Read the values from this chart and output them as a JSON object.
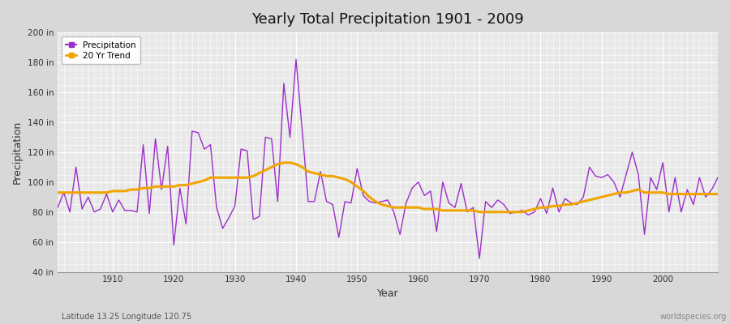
{
  "title": "Yearly Total Precipitation 1901 - 2009",
  "xlabel": "Year",
  "ylabel": "Precipitation",
  "subtitle": "Latitude 13.25 Longitude 120.75",
  "watermark": "worldspecies.org",
  "precip_color": "#9b2fc9",
  "trend_color": "#f0a500",
  "bg_color": "#d8d8d8",
  "plot_bg_color": "#e8e8e8",
  "ylim": [
    40,
    200
  ],
  "yticks": [
    40,
    60,
    80,
    100,
    120,
    140,
    160,
    180,
    200
  ],
  "ytick_labels": [
    "40 in",
    "60 in",
    "80 in",
    "100 in",
    "120 in",
    "140 in",
    "160 in",
    "180 in",
    "200 in"
  ],
  "years": [
    1901,
    1902,
    1903,
    1904,
    1905,
    1906,
    1907,
    1908,
    1909,
    1910,
    1911,
    1912,
    1913,
    1914,
    1915,
    1916,
    1917,
    1918,
    1919,
    1920,
    1921,
    1922,
    1923,
    1924,
    1925,
    1926,
    1927,
    1928,
    1929,
    1930,
    1931,
    1932,
    1933,
    1934,
    1935,
    1936,
    1937,
    1938,
    1939,
    1940,
    1941,
    1942,
    1943,
    1944,
    1945,
    1946,
    1947,
    1948,
    1949,
    1950,
    1951,
    1952,
    1953,
    1954,
    1955,
    1956,
    1957,
    1958,
    1959,
    1960,
    1961,
    1962,
    1963,
    1964,
    1965,
    1966,
    1967,
    1968,
    1969,
    1970,
    1971,
    1972,
    1973,
    1974,
    1975,
    1976,
    1977,
    1978,
    1979,
    1980,
    1981,
    1982,
    1983,
    1984,
    1985,
    1986,
    1987,
    1988,
    1989,
    1990,
    1991,
    1992,
    1993,
    1994,
    1995,
    1996,
    1997,
    1998,
    1999,
    2000,
    2001,
    2002,
    2003,
    2004,
    2005,
    2006,
    2007,
    2008,
    2009
  ],
  "precip": [
    83,
    93,
    80,
    110,
    82,
    90,
    80,
    82,
    92,
    80,
    88,
    81,
    81,
    80,
    125,
    79,
    129,
    95,
    124,
    58,
    96,
    72,
    134,
    133,
    122,
    125,
    83,
    69,
    76,
    84,
    122,
    121,
    75,
    77,
    130,
    129,
    87,
    166,
    130,
    182,
    135,
    87,
    87,
    107,
    87,
    85,
    63,
    87,
    86,
    109,
    91,
    87,
    86,
    87,
    88,
    80,
    65,
    86,
    96,
    100,
    91,
    94,
    67,
    100,
    86,
    83,
    99,
    80,
    83,
    49,
    87,
    83,
    88,
    85,
    79,
    80,
    81,
    78,
    80,
    89,
    79,
    96,
    80,
    89,
    86,
    85,
    90,
    110,
    104,
    103,
    105,
    100,
    90,
    105,
    120,
    105,
    65,
    103,
    95,
    113,
    80,
    103,
    80,
    95,
    85,
    103,
    90,
    95,
    103
  ],
  "trend": [
    93,
    93,
    93,
    93,
    93,
    93,
    93,
    93,
    93,
    94,
    94,
    94,
    95,
    95,
    96,
    96,
    97,
    97,
    97,
    97,
    98,
    98,
    99,
    100,
    101,
    103,
    103,
    103,
    103,
    103,
    103,
    103,
    104,
    106,
    108,
    110,
    112,
    113,
    113,
    112,
    110,
    107,
    106,
    105,
    104,
    104,
    103,
    102,
    100,
    97,
    94,
    90,
    87,
    85,
    84,
    83,
    83,
    83,
    83,
    83,
    82,
    82,
    82,
    81,
    81,
    81,
    81,
    81,
    81,
    80,
    80,
    80,
    80,
    80,
    80,
    80,
    80,
    81,
    82,
    83,
    83,
    84,
    84,
    85,
    85,
    86,
    87,
    88,
    89,
    90,
    91,
    92,
    93,
    93,
    94,
    95,
    93,
    93,
    93,
    93,
    92,
    92,
    92,
    92,
    92,
    92,
    92,
    92,
    92
  ]
}
